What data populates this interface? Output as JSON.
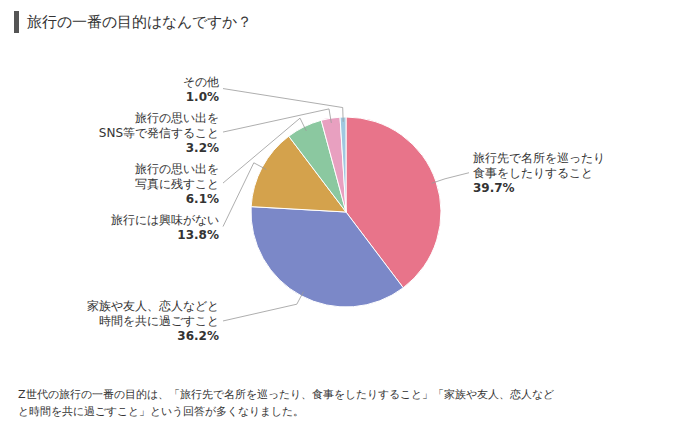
{
  "chart_data": {
    "type": "pie",
    "title": "旅行の一番の目的はなんですか？",
    "categories": [
      "旅行先で名所を巡ったり\n食事をしたりすること",
      "家族や友人、恋人などと\n時間を共に過ごすこと",
      "旅行には興味がない",
      "旅行の思い出を\n写真に残すこと",
      "旅行の思い出を\nSNS等で発信すること",
      "その他"
    ],
    "values": [
      39.7,
      36.2,
      13.8,
      6.1,
      3.2,
      1.0
    ],
    "value_labels": [
      "39.7%",
      "36.2%",
      "13.8%",
      "6.1%",
      "3.2%",
      "1.0%"
    ],
    "colors": [
      "#E8748A",
      "#7B88C8",
      "#D4A24C",
      "#8BC8A0",
      "#E8A0C0",
      "#A0C8E0"
    ],
    "data_labels": true,
    "annotations": [
      "Z世代の旅行の一番の目的は、「旅行先で名所を巡ったり、食事をしたりすること」「家族や友人、恋人など\nと時間を共に過ごすこと」という回答が多くなりました。"
    ]
  }
}
